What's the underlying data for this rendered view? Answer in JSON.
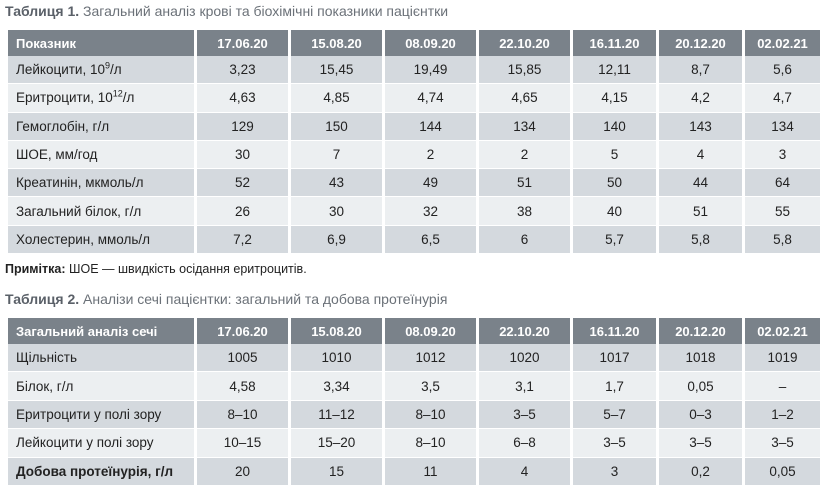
{
  "table1": {
    "caption_num": "Таблиця 1.",
    "caption_text": "Загальний аналіз крові та біохімічні показники пацієнтки",
    "header": [
      "Показник",
      "17.06.20",
      "15.08.20",
      "08.09.20",
      "22.10.20",
      "16.11.20",
      "20.12.20",
      "02.02.21"
    ],
    "rows": [
      {
        "label_pre": "Лейкоцити, 10",
        "label_sup": "9",
        "label_post": "/л",
        "values": [
          "3,23",
          "15,45",
          "19,49",
          "15,85",
          "12,11",
          "8,7",
          "5,6"
        ]
      },
      {
        "label_pre": "Еритроцити, 10",
        "label_sup": "12",
        "label_post": "/л",
        "values": [
          "4,63",
          "4,85",
          "4,74",
          "4,65",
          "4,15",
          "4,2",
          "4,7"
        ]
      },
      {
        "label_pre": "Гемоглобін, г/л",
        "label_sup": "",
        "label_post": "",
        "values": [
          "129",
          "150",
          "144",
          "134",
          "140",
          "143",
          "134"
        ]
      },
      {
        "label_pre": "ШОЕ, мм/год",
        "label_sup": "",
        "label_post": "",
        "values": [
          "30",
          "7",
          "2",
          "2",
          "5",
          "4",
          "3"
        ]
      },
      {
        "label_pre": "Креатинін, мкмоль/л",
        "label_sup": "",
        "label_post": "",
        "values": [
          "52",
          "43",
          "49",
          "51",
          "50",
          "44",
          "64"
        ]
      },
      {
        "label_pre": "Загальний білок, г/л",
        "label_sup": "",
        "label_post": "",
        "values": [
          "26",
          "30",
          "32",
          "38",
          "40",
          "51",
          "55"
        ]
      },
      {
        "label_pre": "Холестерин, ммоль/л",
        "label_sup": "",
        "label_post": "",
        "values": [
          "7,2",
          "6,9",
          "6,5",
          "6",
          "5,7",
          "5,8",
          "5,8"
        ]
      }
    ]
  },
  "note": {
    "label": "Примітка:",
    "text": "ШОЕ — швидкість осідання еритроцитів."
  },
  "table2": {
    "caption_num": "Таблиця 2.",
    "caption_text": "Аналізи сечі пацієнтки: загальний та добова протеїнурія",
    "header": [
      "Загальний аналіз сечі",
      "17.06.20",
      "15.08.20",
      "08.09.20",
      "22.10.20",
      "16.11.20",
      "20.12.20",
      "02.02.21"
    ],
    "rows": [
      {
        "label": "Щільність",
        "values": [
          "1005",
          "1010",
          "1012",
          "1020",
          "1017",
          "1018",
          "1019"
        ]
      },
      {
        "label": "Білок, г/л",
        "values": [
          "4,58",
          "3,34",
          "3,5",
          "3,1",
          "1,7",
          "0,05",
          "–"
        ]
      },
      {
        "label": "Еритроцити у полі зору",
        "values": [
          "8–10",
          "11–12",
          "8–10",
          "3–5",
          "5–7",
          "0–3",
          "1–2"
        ]
      },
      {
        "label": "Лейкоцити у полі зору",
        "values": [
          "10–15",
          "15–20",
          "8–10",
          "6–8",
          "3–5",
          "3–5",
          "3–5"
        ]
      },
      {
        "label": "Добова протеїнурія, г/л",
        "values": [
          "20",
          "15",
          "11",
          "4",
          "3",
          "0,2",
          "0,05"
        ]
      }
    ]
  },
  "colors": {
    "header_bg": "#7a828a",
    "row_dark": "#d4d9de",
    "row_light": "#eceff1",
    "caption": "#6b7178"
  }
}
